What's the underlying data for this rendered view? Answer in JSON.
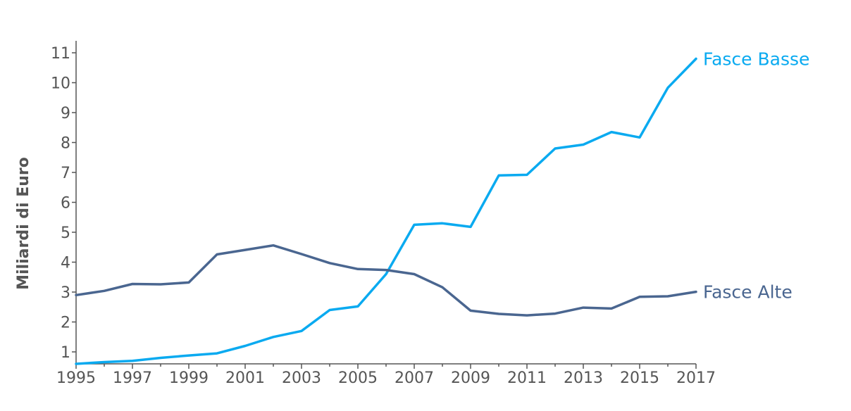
{
  "chart_data": {
    "type": "line",
    "title": "",
    "xlabel": "",
    "ylabel": "Miliardi di Euro",
    "x": [
      1995,
      1996,
      1997,
      1998,
      1999,
      2000,
      2001,
      2002,
      2003,
      2004,
      2005,
      2006,
      2007,
      2008,
      2009,
      2010,
      2011,
      2012,
      2013,
      2014,
      2015,
      2016,
      2017
    ],
    "xticks": [
      "1995",
      "1997",
      "1999",
      "2001",
      "2003",
      "2005",
      "2007",
      "2009",
      "2011",
      "2013",
      "2015",
      "2017"
    ],
    "yticks": [
      "1",
      "2",
      "3",
      "4",
      "5",
      "6",
      "7",
      "8",
      "9",
      "10",
      "11"
    ],
    "ylim": [
      0.6,
      11.4
    ],
    "xlim": [
      1995,
      2017
    ],
    "grid": false,
    "legend": "none (series labeled at line ends)",
    "series": [
      {
        "name": "Fasce Basse",
        "color": "#0aaaf0",
        "values": [
          0.6,
          0.66,
          0.7,
          0.8,
          0.88,
          0.95,
          1.2,
          1.5,
          1.7,
          2.4,
          2.52,
          3.6,
          5.25,
          5.3,
          5.18,
          6.9,
          6.92,
          7.8,
          7.93,
          8.35,
          8.17,
          9.83,
          10.8
        ]
      },
      {
        "name": "Fasce Alte",
        "color": "#4a6690",
        "values": [
          2.9,
          3.04,
          3.27,
          3.26,
          3.32,
          4.26,
          4.41,
          4.56,
          4.27,
          3.97,
          3.77,
          3.74,
          3.6,
          3.16,
          2.38,
          2.27,
          2.22,
          2.28,
          2.48,
          2.45,
          2.84,
          2.86,
          3.01
        ]
      }
    ]
  }
}
